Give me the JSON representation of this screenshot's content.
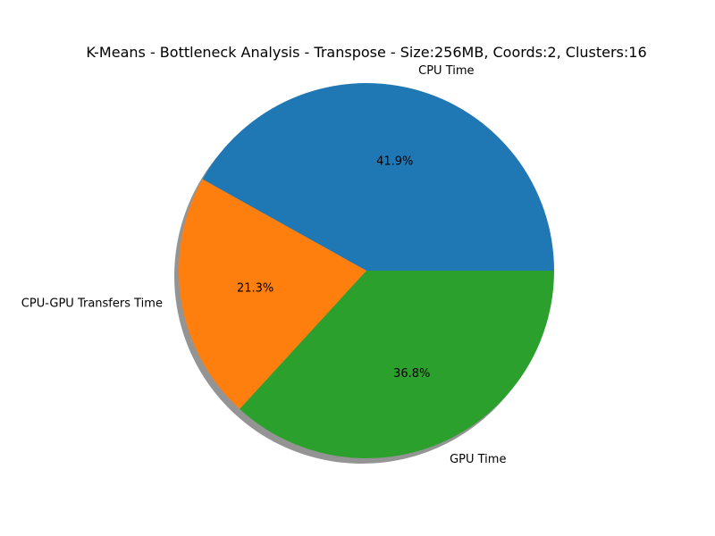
{
  "chart_data": {
    "type": "pie",
    "title": "K-Means - Bottleneck Analysis - Transpose - Size:256MB, Coords:2, Clusters:16",
    "labels": [
      "CPU Time",
      "CPU-GPU Transfers Time",
      "GPU Time"
    ],
    "values": [
      41.9,
      21.3,
      36.8
    ],
    "value_labels": [
      "41.9%",
      "21.3%",
      "36.8%"
    ],
    "colors": [
      "#1f77b4",
      "#ff7f0e",
      "#2ca02c"
    ],
    "start_angle_deg": 0,
    "direction": "counterclockwise",
    "shadow": true,
    "legend": "none"
  }
}
